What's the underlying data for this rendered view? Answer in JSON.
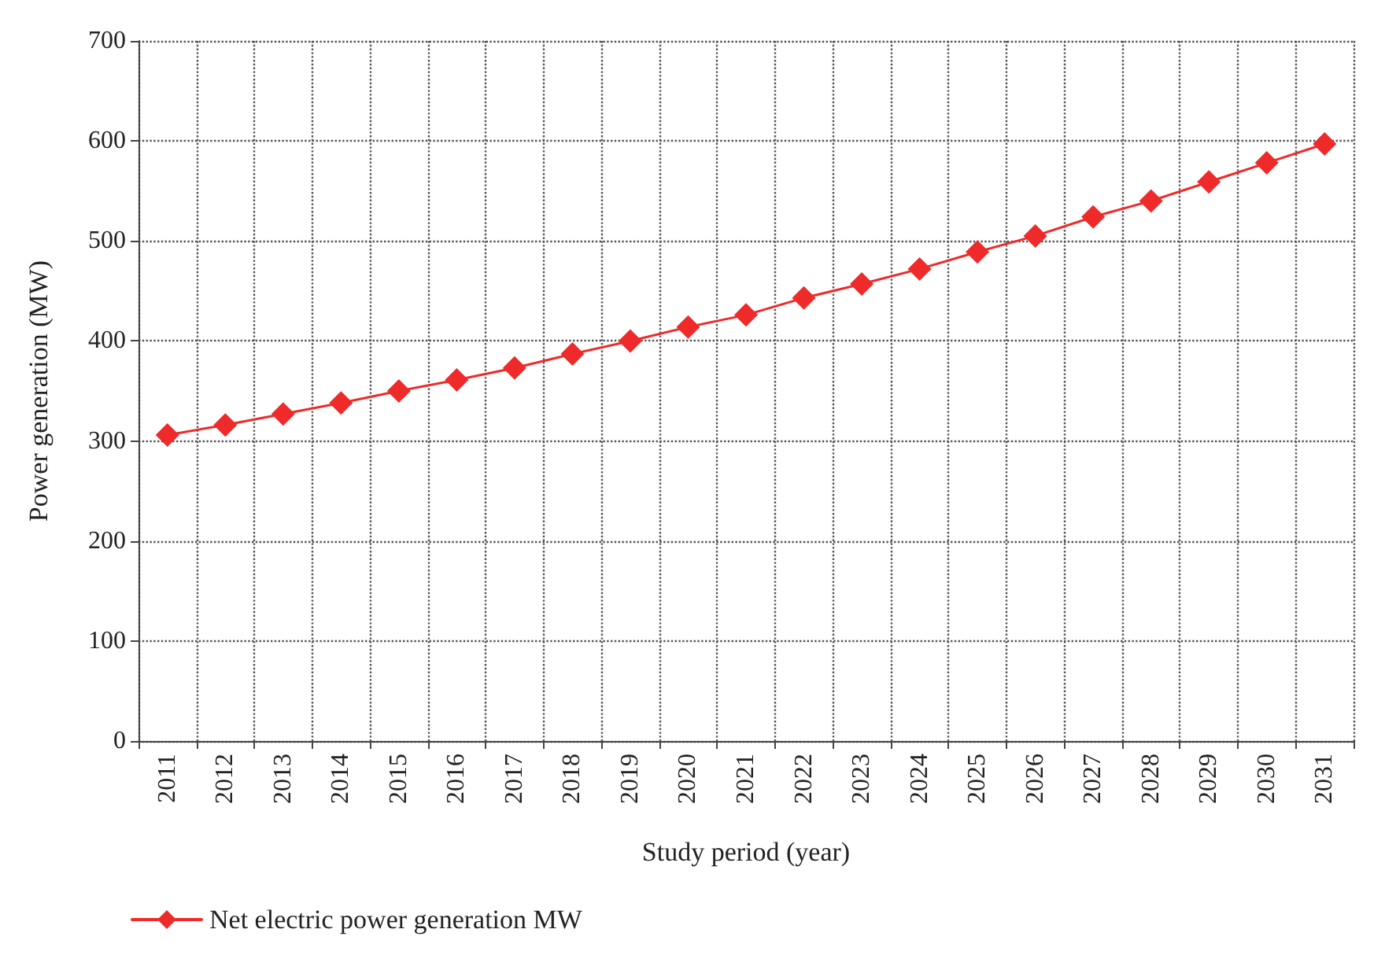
{
  "chart_data": {
    "type": "line",
    "xlabel": "Study period (year)",
    "ylabel": "Power generation (MW)",
    "categories": [
      "2011",
      "2012",
      "2013",
      "2014",
      "2015",
      "2016",
      "2017",
      "2018",
      "2019",
      "2020",
      "2021",
      "2022",
      "2023",
      "2024",
      "2025",
      "2026",
      "2027",
      "2028",
      "2029",
      "2030",
      "2031"
    ],
    "series": [
      {
        "name": "Net electric power generation MW",
        "color": "#ee2a2a",
        "values": [
          306,
          316,
          327,
          338,
          350,
          361,
          373,
          387,
          400,
          414,
          426,
          443,
          457,
          472,
          489,
          505,
          524,
          540,
          559,
          578,
          597
        ]
      }
    ],
    "ylim": [
      0,
      700
    ],
    "yticks": [
      0,
      100,
      200,
      300,
      400,
      500,
      600,
      700
    ],
    "grid": true,
    "legend": "bottom left",
    "marker": "diamond",
    "line_style": "solid"
  }
}
